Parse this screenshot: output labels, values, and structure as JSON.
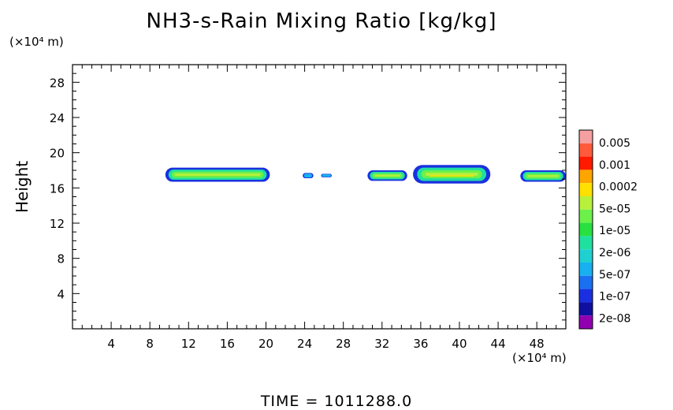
{
  "title": "NH3-s-Rain Mixing Ratio [kg/kg]",
  "y_unit": "(×10⁴ m)",
  "x_unit": "(×10⁴ m)",
  "ylabel": "Height",
  "time_label": "TIME  =  1011288.0",
  "chart_data": {
    "type": "heatmap",
    "title": "NH3-s-Rain Mixing Ratio [kg/kg]",
    "xlabel": "",
    "ylabel": "Height",
    "xlim": [
      0,
      51
    ],
    "ylim": [
      0,
      30
    ],
    "x_ticks": [
      4,
      8,
      12,
      16,
      20,
      24,
      28,
      32,
      36,
      40,
      44,
      48
    ],
    "y_ticks": [
      4,
      8,
      12,
      16,
      20,
      24,
      28
    ],
    "grid": false,
    "colorbar": {
      "position": "right",
      "labels": [
        "0.005",
        "0.001",
        "0.0002",
        "5e-05",
        "1e-05",
        "2e-06",
        "5e-07",
        "1e-07",
        "2e-08"
      ],
      "colors": [
        "#f5a0a0",
        "#ff5a3c",
        "#ff1a00",
        "#ffa500",
        "#ffe000",
        "#b8f03c",
        "#6cf04a",
        "#28e040",
        "#20e0a0",
        "#20d0d0",
        "#18b0f0",
        "#1a70f0",
        "#1a30e0",
        "#1010a0",
        "#9000b0"
      ]
    },
    "regions": [
      {
        "x_range": [
          9.6,
          20.4
        ],
        "y_range": [
          16.7,
          18.3
        ],
        "peak": "5e-05"
      },
      {
        "x_range": [
          23.8,
          24.9
        ],
        "y_range": [
          17.1,
          17.7
        ],
        "peak": "1e-07"
      },
      {
        "x_range": [
          25.7,
          26.8
        ],
        "y_range": [
          17.2,
          17.6
        ],
        "peak": "1e-07"
      },
      {
        "x_range": [
          30.5,
          34.6
        ],
        "y_range": [
          16.8,
          18.0
        ],
        "peak": "5e-05"
      },
      {
        "x_range": [
          35.2,
          43.2
        ],
        "y_range": [
          16.5,
          18.6
        ],
        "peak": "0.0002"
      },
      {
        "x_range": [
          46.3,
          51.0
        ],
        "y_range": [
          16.7,
          18.0
        ],
        "peak": "5e-05"
      }
    ]
  }
}
